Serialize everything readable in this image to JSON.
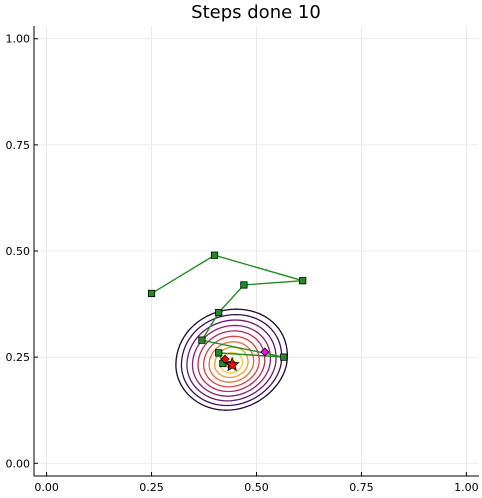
{
  "chart_data": {
    "type": "line",
    "title": "Steps done 10",
    "xlabel": "",
    "ylabel": "",
    "xlim": [
      -0.03,
      1.03
    ],
    "ylim": [
      -0.03,
      1.03
    ],
    "x_ticks": [
      0.0,
      0.25,
      0.5,
      0.75,
      1.0
    ],
    "x_tick_labels": [
      "0.00",
      "0.25",
      "0.50",
      "0.75",
      "1.00"
    ],
    "y_ticks": [
      0.0,
      0.25,
      0.5,
      0.75,
      1.0
    ],
    "y_tick_labels": [
      "0.00",
      "0.25",
      "0.50",
      "0.75",
      "1.00"
    ],
    "grid": true,
    "legend": "none",
    "contour": {
      "center": [
        0.44,
        0.235
      ],
      "levels": 10,
      "colormap": [
        "#f5f36a",
        "#fbc930",
        "#f89b2a",
        "#e86b37",
        "#cf4446",
        "#ae2e5a",
        "#8a226a",
        "#651a6c",
        "#3e0f57",
        "#180a2e"
      ]
    },
    "series": [
      {
        "color": "#228b22",
        "marker": "square",
        "x": [
          0.25,
          0.4,
          0.61,
          0.47,
          0.41,
          0.37,
          0.565,
          0.41,
          0.42,
          0.44
        ],
        "y": [
          0.4,
          0.49,
          0.43,
          0.42,
          0.355,
          0.29,
          0.25,
          0.26,
          0.235,
          0.232
        ]
      }
    ],
    "points": [
      {
        "marker": "diamond",
        "color": "#ff00ff",
        "x": 0.52,
        "y": 0.262
      },
      {
        "marker": "diamond",
        "color": "#ff0000",
        "x": 0.425,
        "y": 0.245
      },
      {
        "marker": "star",
        "color": "#ff0000",
        "x": 0.442,
        "y": 0.232
      }
    ]
  }
}
